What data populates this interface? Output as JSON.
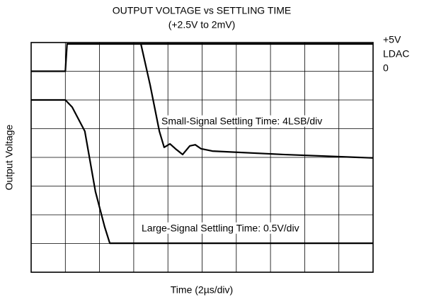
{
  "chart_data": {
    "type": "line",
    "title": "OUTPUT VOLTAGE vs SETTLING TIME",
    "subtitle": "(+2.5V to 2mV)",
    "x_label": "Time (2µs/div)",
    "y_label": "Output Voltage",
    "xlim": [
      0,
      10
    ],
    "ylim": [
      0,
      8
    ],
    "grid": true,
    "series": [
      {
        "color": "#000000",
        "x": [
          0,
          1,
          1.05,
          10
        ],
        "values": [
          7,
          7,
          7.95,
          7.95
        ]
      },
      {
        "color": "#000000",
        "x": [
          3.21,
          3.48,
          3.75,
          3.89,
          4.06,
          4.22,
          4.43,
          4.64,
          4.8,
          4.97,
          5.3,
          7.37,
          10
        ],
        "values": [
          7.95,
          6.52,
          4.91,
          4.35,
          4.47,
          4.3,
          4.1,
          4.4,
          4.44,
          4.3,
          4.22,
          4.1,
          3.98
        ]
      },
      {
        "color": "#000000",
        "x": [
          0,
          1,
          1.2,
          1.57,
          1.88,
          2.15,
          2.3,
          10
        ],
        "values": [
          6,
          6,
          5.75,
          4.91,
          2.81,
          1.58,
          1.01,
          1.01
        ]
      }
    ],
    "annotations": [
      "+5V",
      "LDAC",
      "0",
      "Small-Signal Settling Time: 4LSB/div",
      "Large-Signal Settling Time: 0.5V/div"
    ]
  }
}
